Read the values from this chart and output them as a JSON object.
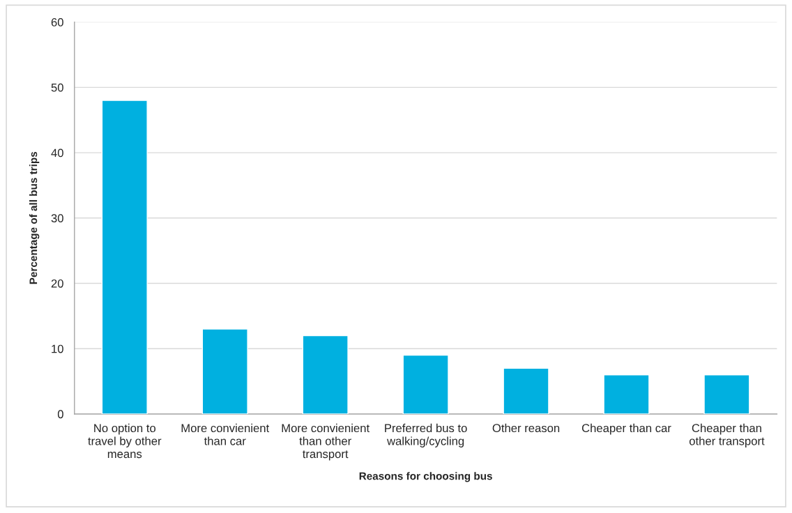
{
  "chart_data": {
    "type": "bar",
    "xlabel": "Reasons for choosing bus",
    "ylabel": "Percentage of all bus trips",
    "categories": [
      "No option to travel by other means",
      "More convienient than car",
      "More convienient than other transport",
      "Preferred bus to walking/cycling",
      "Other reason",
      "Cheaper than car",
      "Cheaper than other transport"
    ],
    "values": [
      48,
      13,
      12,
      9,
      7,
      6,
      6
    ],
    "color": "#00b0e0",
    "ylim": [
      0,
      60
    ],
    "yticks": [
      0,
      10,
      20,
      30,
      40,
      50,
      60
    ],
    "grid": "y"
  }
}
